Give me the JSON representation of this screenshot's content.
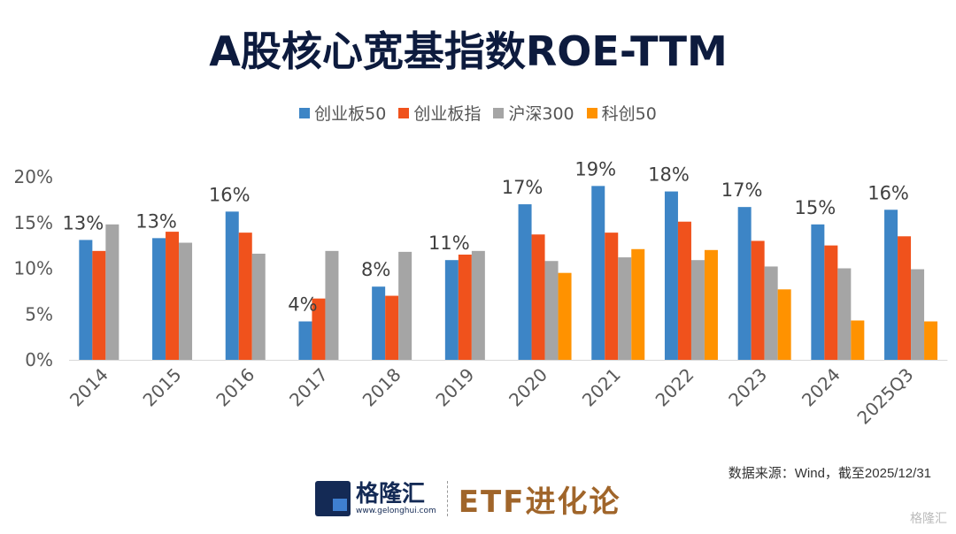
{
  "title": "A股核心宽基指数ROE-TTM",
  "source": "数据来源：Wind，截至2025/12/31",
  "footer": {
    "brand": "格隆汇",
    "url": "www.gelonghui.com",
    "column": "ETF进化论",
    "watermark": "格隆汇"
  },
  "chart_data": {
    "type": "bar",
    "title": "A股核心宽基指数ROE-TTM",
    "categories": [
      "2014",
      "2015",
      "2016",
      "2017",
      "2018",
      "2019",
      "2020",
      "2021",
      "2022",
      "2023",
      "2024",
      "2025Q3"
    ],
    "series": [
      {
        "name": "创业板50",
        "color": "#3d85c6",
        "values": [
          13.1,
          13.3,
          16.2,
          4.2,
          8.0,
          10.9,
          17.0,
          19.0,
          18.4,
          16.7,
          14.8,
          16.4
        ]
      },
      {
        "name": "创业板指",
        "color": "#f0521c",
        "values": [
          11.9,
          14.0,
          13.9,
          6.7,
          7.0,
          11.5,
          13.7,
          13.9,
          15.1,
          13.0,
          12.5,
          13.5
        ]
      },
      {
        "name": "沪深300",
        "color": "#a5a5a5",
        "values": [
          14.8,
          12.8,
          11.6,
          11.9,
          11.8,
          11.9,
          10.8,
          11.2,
          10.9,
          10.2,
          10.0,
          9.9
        ]
      },
      {
        "name": "科创50",
        "color": "#ff9200",
        "values": [
          null,
          null,
          null,
          null,
          null,
          null,
          9.5,
          12.1,
          12.0,
          7.7,
          4.3,
          4.2
        ]
      }
    ],
    "data_labels": [
      "13%",
      "13%",
      "16%",
      "4%",
      "8%",
      "11%",
      "17%",
      "19%",
      "18%",
      "17%",
      "15%",
      "16%"
    ],
    "ylim": [
      0,
      20
    ],
    "yticks": [
      "0%",
      "5%",
      "10%",
      "15%",
      "20%"
    ],
    "grid": false,
    "legend": "top"
  }
}
